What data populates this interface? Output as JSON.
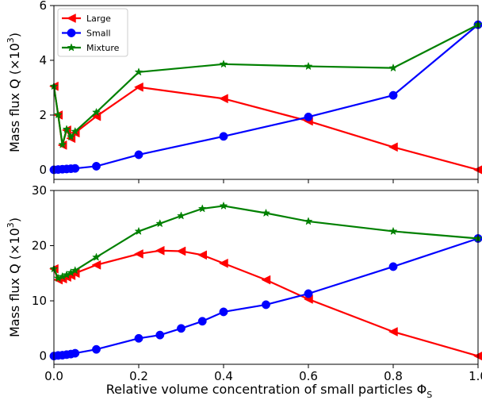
{
  "chart_data": [
    {
      "type": "line",
      "panel": "top",
      "ylabel_main": "Mass flux Q (×10",
      "ylabel_sup": "3",
      "ylabel_close": ")",
      "xlim": [
        0,
        1
      ],
      "ylim": [
        -0.35,
        6
      ],
      "yticks": [
        0,
        2,
        4,
        6
      ],
      "xticks": [
        0,
        0.2,
        0.4,
        0.6,
        0.8,
        1
      ],
      "show_xticklabels": false,
      "legend": {
        "position": "top-left"
      },
      "series": [
        {
          "name": "Large",
          "color": "#ff0000",
          "marker": "triangle-left",
          "x": [
            0,
            0.01,
            0.02,
            0.03,
            0.04,
            0.05,
            0.1,
            0.2,
            0.4,
            0.6,
            0.8,
            1.0
          ],
          "y": [
            3.05,
            2.0,
            0.9,
            1.45,
            1.15,
            1.35,
            1.95,
            3.02,
            2.6,
            1.78,
            0.83,
            0.0
          ]
        },
        {
          "name": "Small",
          "color": "#0000ff",
          "marker": "circle",
          "x": [
            0,
            0.01,
            0.02,
            0.03,
            0.04,
            0.05,
            0.1,
            0.2,
            0.4,
            0.6,
            0.8,
            1.0
          ],
          "y": [
            0.0,
            0.01,
            0.02,
            0.03,
            0.04,
            0.05,
            0.13,
            0.55,
            1.22,
            1.93,
            2.72,
            5.3
          ]
        },
        {
          "name": "Mixture",
          "color": "#008000",
          "marker": "star",
          "x": [
            0,
            0.01,
            0.02,
            0.03,
            0.04,
            0.05,
            0.1,
            0.2,
            0.4,
            0.6,
            0.8,
            1.0
          ],
          "y": [
            3.05,
            2.01,
            0.92,
            1.48,
            1.2,
            1.4,
            2.1,
            3.57,
            3.86,
            3.78,
            3.72,
            5.3
          ]
        }
      ]
    },
    {
      "type": "line",
      "panel": "bottom",
      "ylabel_main": "Mass flux Q (×10",
      "ylabel_sup": "3",
      "ylabel_close": ")",
      "xlabel_main": "Relative volume concentration of small particles Φ",
      "xlabel_sub": "S",
      "xlim": [
        0,
        1
      ],
      "ylim": [
        -1.5,
        30
      ],
      "yticks": [
        0,
        10,
        20,
        30
      ],
      "xticks": [
        0,
        0.2,
        0.4,
        0.6,
        0.8,
        1
      ],
      "xticklabels": [
        "0.0",
        "0.2",
        "0.4",
        "0.6",
        "0.8",
        "1.0"
      ],
      "series": [
        {
          "name": "Large",
          "color": "#ff0000",
          "marker": "triangle-left",
          "x": [
            0,
            0.01,
            0.02,
            0.03,
            0.04,
            0.05,
            0.1,
            0.2,
            0.25,
            0.3,
            0.35,
            0.4,
            0.5,
            0.6,
            0.8,
            1.0
          ],
          "y": [
            15.8,
            13.8,
            14.0,
            14.3,
            14.6,
            15.0,
            16.5,
            18.5,
            19.1,
            19.0,
            18.3,
            16.8,
            13.8,
            10.3,
            4.4,
            0.0
          ]
        },
        {
          "name": "Small",
          "color": "#0000ff",
          "marker": "circle",
          "x": [
            0,
            0.01,
            0.02,
            0.03,
            0.04,
            0.05,
            0.1,
            0.2,
            0.25,
            0.3,
            0.35,
            0.4,
            0.5,
            0.6,
            0.8,
            1.0
          ],
          "y": [
            0.0,
            0.1,
            0.15,
            0.25,
            0.35,
            0.5,
            1.2,
            3.2,
            3.8,
            5.0,
            6.3,
            8.0,
            9.3,
            11.3,
            16.2,
            21.3
          ]
        },
        {
          "name": "Mixture",
          "color": "#008000",
          "marker": "star",
          "x": [
            0,
            0.01,
            0.02,
            0.03,
            0.04,
            0.05,
            0.1,
            0.2,
            0.25,
            0.3,
            0.35,
            0.4,
            0.5,
            0.6,
            0.8,
            1.0
          ],
          "y": [
            15.8,
            14.1,
            14.4,
            14.7,
            15.1,
            15.5,
            17.9,
            22.6,
            24.0,
            25.4,
            26.7,
            27.2,
            25.9,
            24.4,
            22.6,
            21.3
          ]
        }
      ]
    }
  ]
}
